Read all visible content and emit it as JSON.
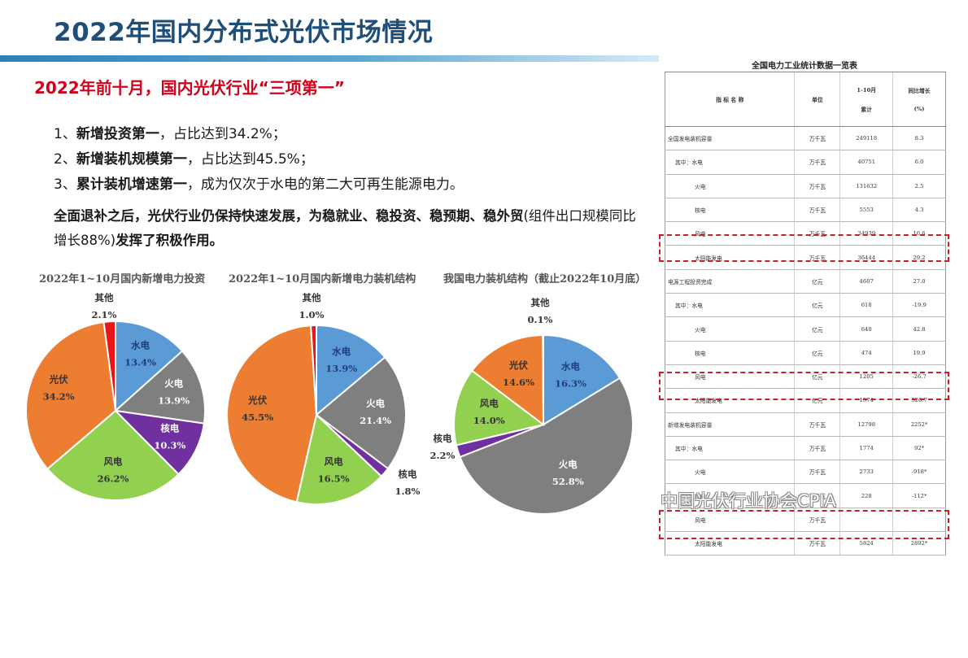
{
  "page": {
    "title": "2022年国内分布式光伏市场情况",
    "subtitle": "2022年前十月，国内光伏行业“三项第一”"
  },
  "items": [
    {
      "num": "1、",
      "bold": "新增投资第一",
      "rest": "，占比达到34.2%；"
    },
    {
      "num": "2、",
      "bold": "新增装机规模第一",
      "rest": "，占比达到45.5%；"
    },
    {
      "num": "3、",
      "bold": "累计装机增速第一",
      "rest": "，成为仅次于水电的第二大可再生能源电力。"
    }
  ],
  "paragraph": {
    "bold_part": "全面退补之后，光伏行业仍保持快速发展，为稳就业、稳投资、稳预期、稳外贸",
    "normal_part": "(组件出口规模同比增长88%)",
    "bold_end": "发挥了积极作用。"
  },
  "chart_data": [
    {
      "type": "pie",
      "title": "2022年1~10月国内新增电力投资",
      "slices": [
        {
          "label": "水电",
          "value": 13.4,
          "display": "13.4%",
          "color": "#5b9bd5"
        },
        {
          "label": "火电",
          "value": 13.9,
          "display": "13.9%",
          "color": "#7f7f7f"
        },
        {
          "label": "核电",
          "value": 10.3,
          "display": "10.3%",
          "color": "#7030a0"
        },
        {
          "label": "风电",
          "value": 26.2,
          "display": "26.2%",
          "color": "#92d050"
        },
        {
          "label": "光伏",
          "value": 34.2,
          "display": "34.2%",
          "color": "#ed7d31"
        },
        {
          "label": "其他",
          "value": 2.1,
          "display": "2.1%",
          "color": "#e8161b"
        }
      ]
    },
    {
      "type": "pie",
      "title": "2022年1~10月国内新增电力装机结构",
      "slices": [
        {
          "label": "水电",
          "value": 13.9,
          "display": "13.9%",
          "color": "#5b9bd5"
        },
        {
          "label": "火电",
          "value": 21.4,
          "display": "21.4%",
          "color": "#7f7f7f"
        },
        {
          "label": "核电",
          "value": 1.8,
          "display": "1.8%",
          "color": "#7030a0"
        },
        {
          "label": "风电",
          "value": 16.5,
          "display": "16.5%",
          "color": "#92d050"
        },
        {
          "label": "光伏",
          "value": 45.5,
          "display": "45.5%",
          "color": "#ed7d31"
        },
        {
          "label": "其他",
          "value": 1.0,
          "display": "1.0%",
          "color": "#e8161b"
        }
      ]
    },
    {
      "type": "pie",
      "title": "我国电力装机结构（截止2022年10月底）",
      "slices": [
        {
          "label": "水电",
          "value": 16.3,
          "display": "16.3%",
          "color": "#5b9bd5"
        },
        {
          "label": "火电",
          "value": 52.8,
          "display": "52.8%",
          "color": "#7f7f7f"
        },
        {
          "label": "核电",
          "value": 2.2,
          "display": "2.2%",
          "color": "#7030a0"
        },
        {
          "label": "风电",
          "value": 14.0,
          "display": "14.0%",
          "color": "#92d050"
        },
        {
          "label": "光伏",
          "value": 14.6,
          "display": "14.6%",
          "color": "#ed7d31"
        },
        {
          "label": "其他",
          "value": 0.1,
          "display": "0.1%",
          "color": "#e8161b"
        }
      ]
    }
  ],
  "table": {
    "caption": "全国电力工业统计数据一览表",
    "headers": {
      "name": "指 标 名 称",
      "unit": "单位",
      "value_line1": "1-10月",
      "value_line2": "累计",
      "growth_line1": "同比增长",
      "growth_line2": "(%)"
    },
    "rows": [
      {
        "name": "全国发电装机容量",
        "unit": "万千瓦",
        "value": "249118",
        "growth": "8.3",
        "level": 1
      },
      {
        "name": "其中：水电",
        "unit": "万千瓦",
        "value": "40751",
        "growth": "6.0",
        "level": 2
      },
      {
        "name": "火电",
        "unit": "万千瓦",
        "value": "131632",
        "growth": "2.5",
        "level": 3
      },
      {
        "name": "核电",
        "unit": "万千瓦",
        "value": "5553",
        "growth": "4.3",
        "level": 3
      },
      {
        "name": "风电",
        "unit": "万千瓦",
        "value": "34939",
        "growth": "16.6",
        "level": 3
      },
      {
        "name": "太阳能发电",
        "unit": "万千瓦",
        "value": "36444",
        "growth": "29.2",
        "level": 3
      },
      {
        "name": "电源工程投资完成",
        "unit": "亿元",
        "value": "4607",
        "growth": "27.0",
        "level": 1
      },
      {
        "name": "其中：水电",
        "unit": "亿元",
        "value": "618",
        "growth": "-19.9",
        "level": 2
      },
      {
        "name": "火电",
        "unit": "亿元",
        "value": "640",
        "growth": "42.8",
        "level": 3
      },
      {
        "name": "核电",
        "unit": "亿元",
        "value": "474",
        "growth": "19.9",
        "level": 3
      },
      {
        "name": "风电",
        "unit": "亿元",
        "value": "1205",
        "growth": "-26.7",
        "level": 3
      },
      {
        "name": "太阳能发电",
        "unit": "亿元",
        "value": "1574",
        "growth": "326.7",
        "level": 3
      },
      {
        "name": "新增发电装机容量",
        "unit": "万千瓦",
        "value": "12798",
        "growth": "2252*",
        "level": 1
      },
      {
        "name": "其中：水电",
        "unit": "万千瓦",
        "value": "1774",
        "growth": "92*",
        "level": 2
      },
      {
        "name": "火电",
        "unit": "万千瓦",
        "value": "2733",
        "growth": "-918*",
        "level": 3
      },
      {
        "name": "核电",
        "unit": "万千瓦",
        "value": "228",
        "growth": "-112*",
        "level": 3
      },
      {
        "name": "风电",
        "unit": "万千瓦",
        "value": "",
        "growth": "",
        "level": 3
      },
      {
        "name": "太阳能发电",
        "unit": "万千瓦",
        "value": "5824",
        "growth": "2892*",
        "level": 3
      }
    ]
  },
  "watermark": "中国光伏行业协会CPIA"
}
